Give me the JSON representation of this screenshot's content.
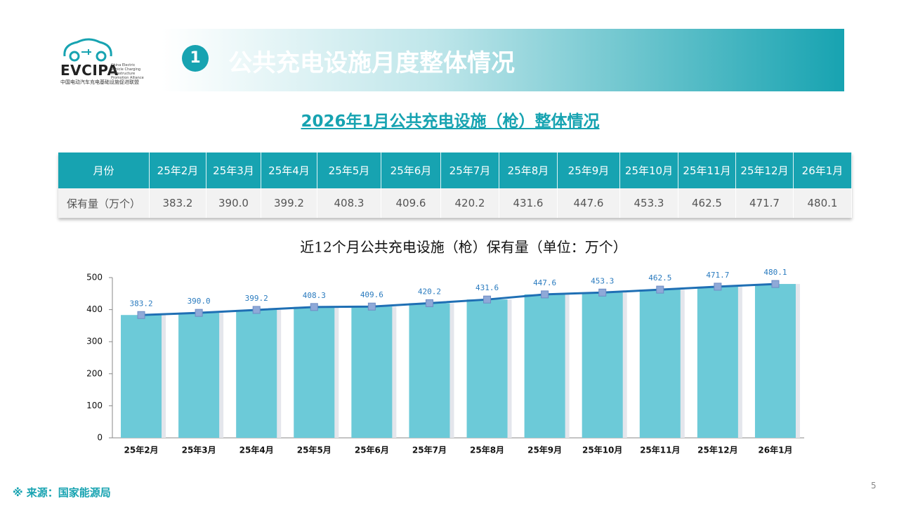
{
  "header": {
    "logo_text": "EVCIPA",
    "logo_subtitle": "China Electric Vehicle Charging Infrastructure Promotion Alliance",
    "logo_cn": "中国电动汽车充电基础设施促进联盟",
    "section_number": "1",
    "title": "公共充电设施月度整体情况"
  },
  "table": {
    "title": "2026年1月公共充电设施（枪）整体情况",
    "header": [
      "月份",
      "25年2月",
      "25年3月",
      "25年4月",
      "25年5月",
      "25年6月",
      "25年7月",
      "25年8月",
      "25年9月",
      "25年10月",
      "25年11月",
      "25年12月",
      "26年1月"
    ],
    "rows": [
      [
        "保有量（万个）",
        "383.2",
        "390.0",
        "399.2",
        "408.3",
        "409.6",
        "420.2",
        "431.6",
        "447.6",
        "453.3",
        "462.5",
        "471.7",
        "480.1"
      ]
    ]
  },
  "chart_data": {
    "type": "bar",
    "title": "近12个月公共充电设施（枪）保有量（单位：万个）",
    "categories": [
      "25年2月",
      "25年3月",
      "25年4月",
      "25年5月",
      "25年6月",
      "25年7月",
      "25年8月",
      "25年9月",
      "25年10月",
      "25年11月",
      "25年12月",
      "26年1月"
    ],
    "series": [
      {
        "type": "bar",
        "color": "#6ccad8",
        "values": [
          383.2,
          390.0,
          399.2,
          408.3,
          409.6,
          420.2,
          431.6,
          447.6,
          453.3,
          462.5,
          471.7,
          480.1
        ]
      },
      {
        "type": "line",
        "color": "#1f6fb4",
        "marker_color": "#8fa9d8",
        "values": [
          383.2,
          390.0,
          399.2,
          408.3,
          409.6,
          420.2,
          431.6,
          447.6,
          453.3,
          462.5,
          471.7,
          480.1
        ],
        "value_labels": [
          "383.2",
          "390.0",
          "399.2",
          "408.3",
          "409.6",
          "420.2",
          "431.6",
          "447.6",
          "453.3",
          "462.5",
          "471.7",
          "480.1"
        ]
      }
    ],
    "ylim": [
      0,
      500
    ],
    "yticks": [
      0,
      100,
      200,
      300,
      400,
      500
    ],
    "grid": false
  },
  "footer": {
    "source": "※ 来源：国家能源局",
    "page_number": "5"
  }
}
